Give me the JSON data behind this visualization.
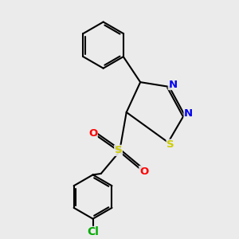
{
  "background_color": "#ebebeb",
  "bond_color": "#000000",
  "bond_width": 1.5,
  "atom_colors": {
    "S_sulfone": "#cccc00",
    "S_thiadiazole": "#cccc00",
    "N": "#0000ee",
    "O": "#ff0000",
    "Cl": "#00aa00",
    "C": "#000000"
  },
  "font_size_atoms": 9.5
}
